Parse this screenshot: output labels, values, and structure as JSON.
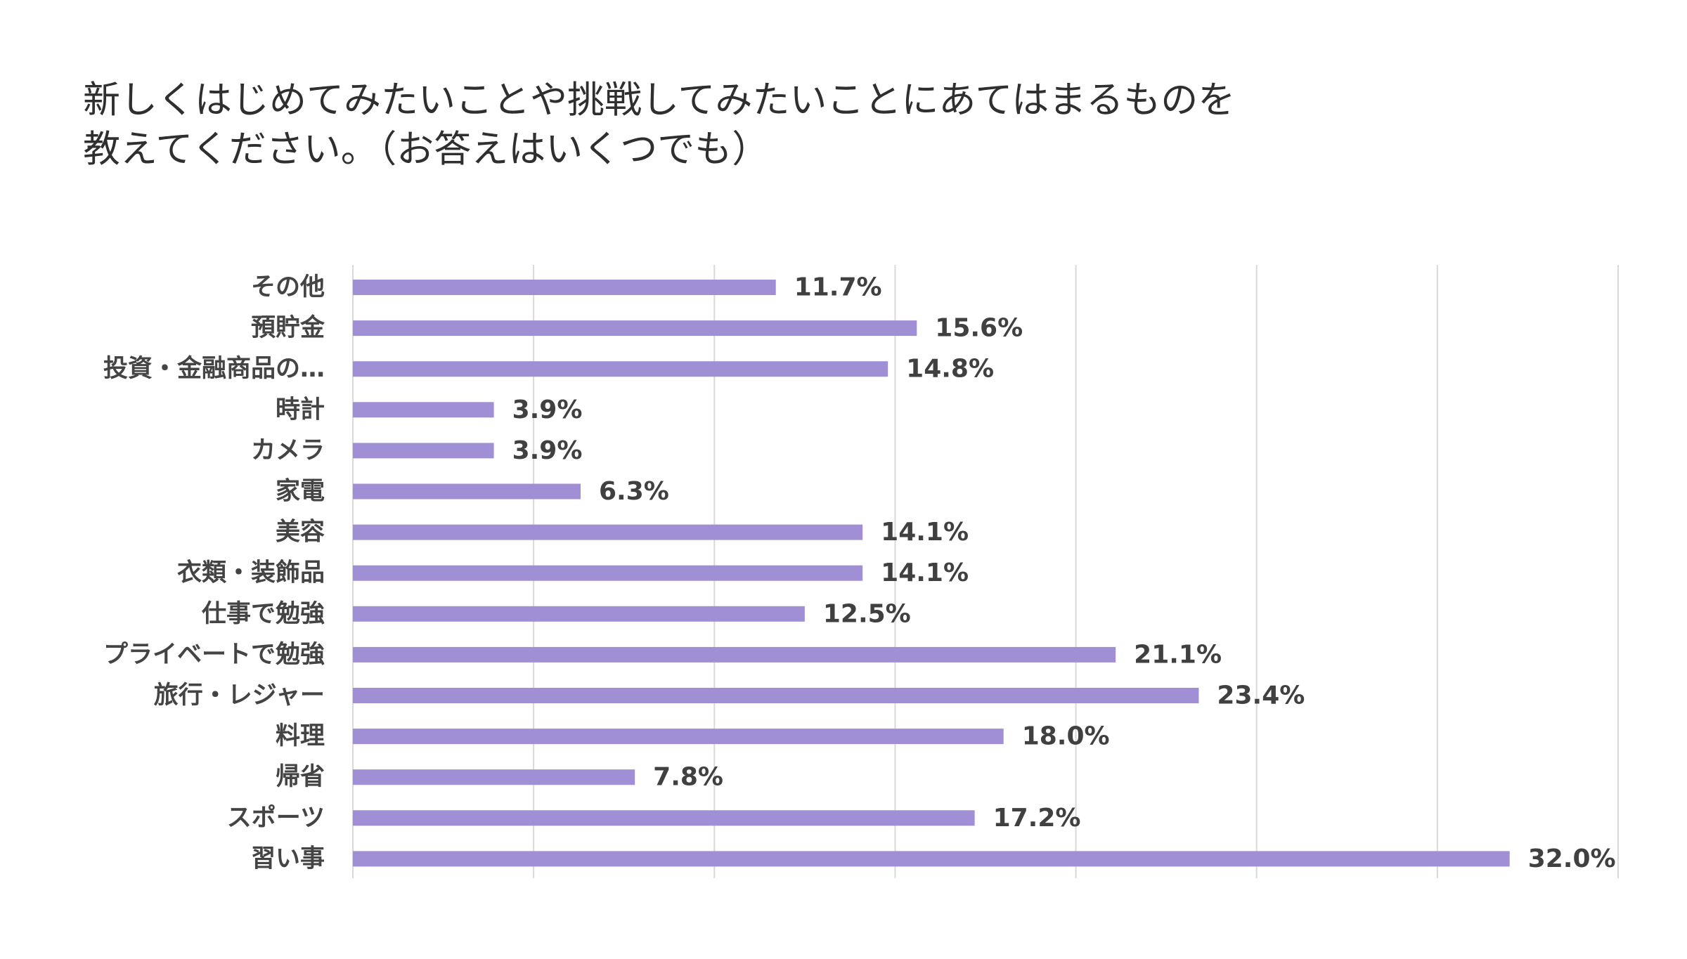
{
  "chart_data": {
    "type": "bar",
    "orientation": "horizontal",
    "title_lines": [
      "新しくはじめてみたいことや挑戦してみたいことにあてはまるものを",
      "教えてください。（お答えはいくつでも）"
    ],
    "categories": [
      "その他",
      "預貯金",
      "投資・金融商品の…",
      "時計",
      "カメラ",
      "家電",
      "美容",
      "衣類・装飾品",
      "仕事で勉強",
      "プライベートで勉強",
      "旅行・レジャー",
      "料理",
      "帰省",
      "スポーツ",
      "習い事"
    ],
    "values": [
      11.7,
      15.6,
      14.8,
      3.9,
      3.9,
      6.3,
      14.1,
      14.1,
      12.5,
      21.1,
      23.4,
      18.0,
      7.8,
      17.2,
      32.0
    ],
    "value_labels": [
      "11.7%",
      "15.6%",
      "14.8%",
      "3.9%",
      "3.9%",
      "6.3%",
      "14.1%",
      "14.1%",
      "12.5%",
      "21.1%",
      "23.4%",
      "18.0%",
      "7.8%",
      "17.2%",
      "32.0%"
    ],
    "xlim": [
      0,
      35
    ],
    "grid_step": 5,
    "grid": true,
    "legend": "none",
    "bar_color": "#a08fd5"
  }
}
